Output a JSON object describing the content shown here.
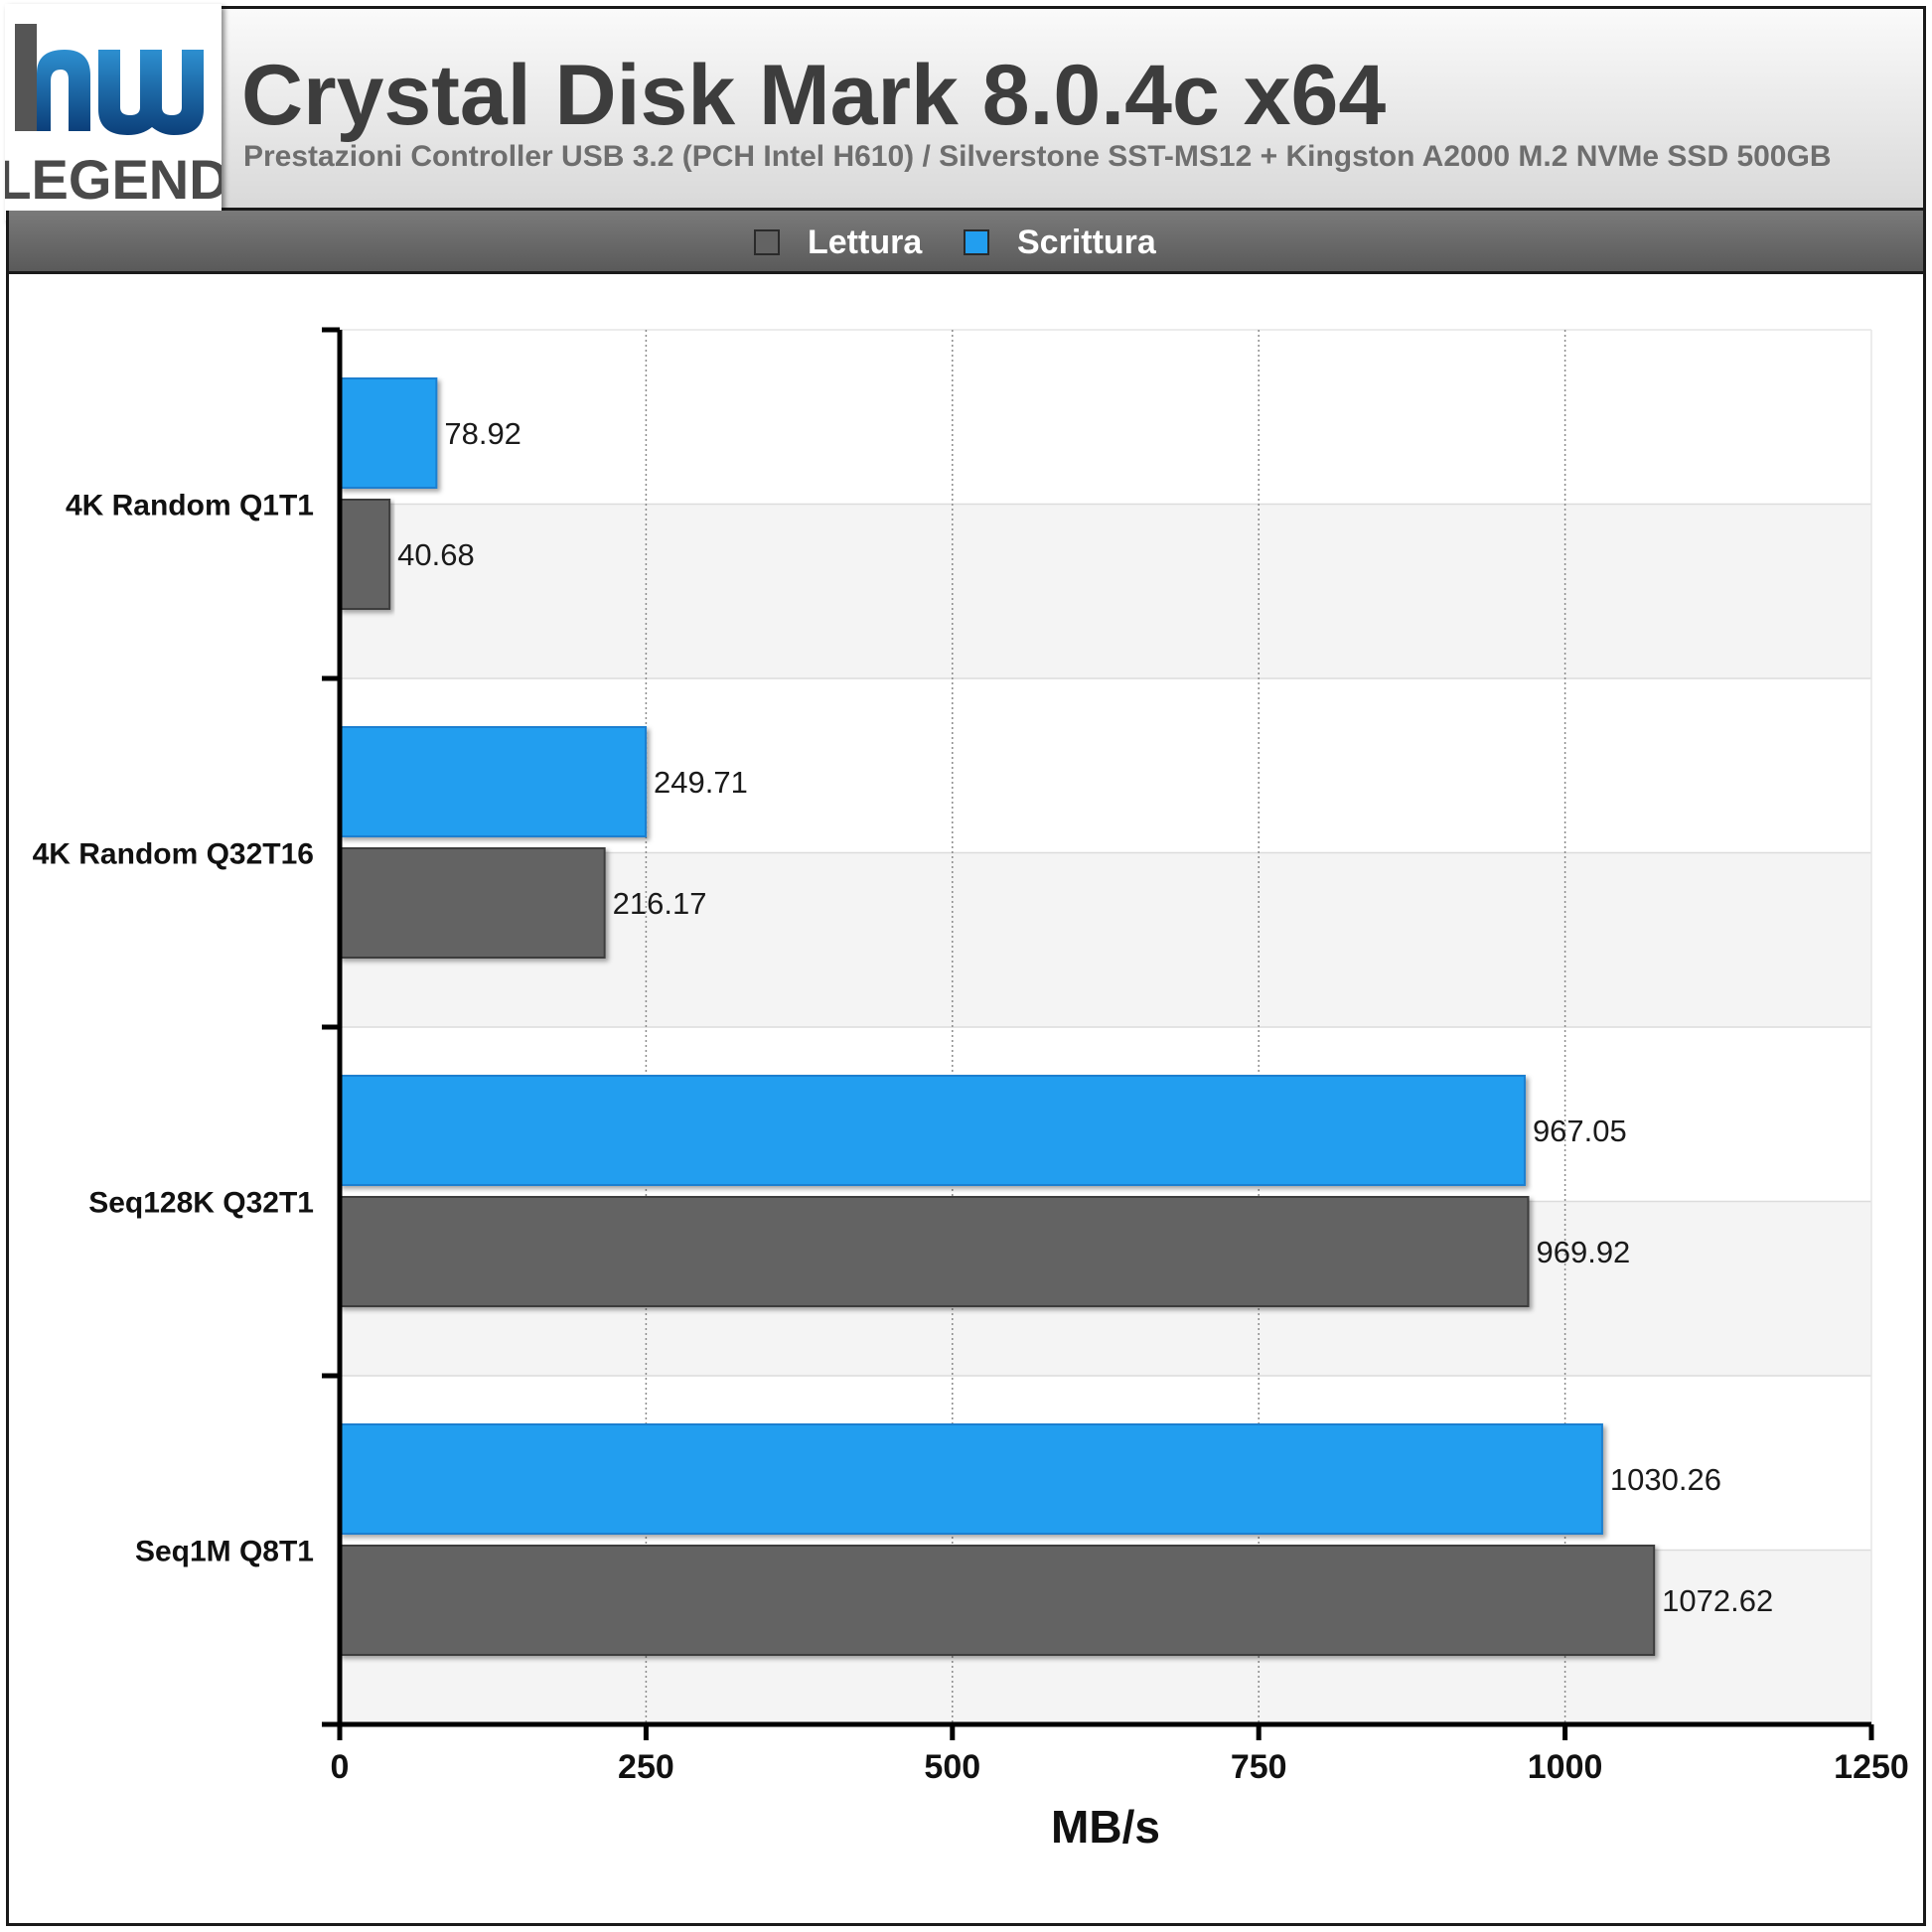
{
  "header": {
    "title": "Crystal Disk Mark 8.0.4c x64",
    "subtitle": "Prestazioni Controller USB 3.2 (PCH Intel H610) / Silverstone SST-MS12 + Kingston A2000 M.2 NVMe SSD 500GB",
    "logo_text": "LEGEND"
  },
  "legend": {
    "items": [
      {
        "label": "Lettura",
        "color": "#636363"
      },
      {
        "label": "Scrittura",
        "color": "#229eef"
      }
    ]
  },
  "chart_data": {
    "type": "bar",
    "orientation": "horizontal",
    "categories": [
      "4K Random Q1T1",
      "4K Random Q32T16",
      "Seq128K Q32T1",
      "Seq1M Q8T1"
    ],
    "series": [
      {
        "name": "Lettura",
        "color": "#636363",
        "values": [
          40.68,
          216.17,
          969.92,
          1072.62
        ],
        "labels": [
          "40.68",
          "216.17",
          "969.92",
          "1072.62"
        ]
      },
      {
        "name": "Scrittura",
        "color": "#229eef",
        "values": [
          78.92,
          249.71,
          967.05,
          1030.26
        ],
        "labels": [
          "78.92",
          "249.71",
          "967.05",
          "1030.26"
        ]
      }
    ],
    "xlabel": "MB/s",
    "ylabel": "",
    "xlim": [
      0,
      1250
    ],
    "xticks": [
      "0",
      "250",
      "500",
      "750",
      "1000",
      "1250"
    ],
    "grid": true,
    "legend_position": "top-center"
  }
}
